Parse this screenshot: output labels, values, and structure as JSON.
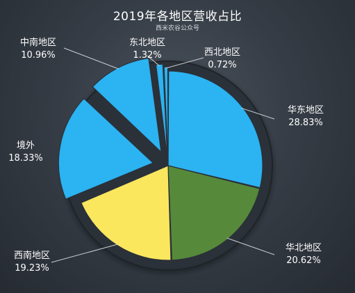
{
  "chart_data": {
    "type": "pie",
    "title": "2019年各地区营收占比",
    "subtitle": "西米农谷公众号",
    "unit": "%",
    "slices": [
      {
        "name": "华东地区",
        "value": 28.83,
        "percent_label": "28.83%",
        "color": "#2bb3f2"
      },
      {
        "name": "华北地区",
        "value": 20.62,
        "percent_label": "20.62%",
        "color": "#568a3a"
      },
      {
        "name": "西南地区",
        "value": 19.23,
        "percent_label": "19.23%",
        "color": "#fbe75d"
      },
      {
        "name": "境外",
        "value": 18.33,
        "percent_label": "18.33%",
        "color": "#2bb3f2"
      },
      {
        "name": "中南地区",
        "value": 10.96,
        "percent_label": "10.96%",
        "color": "#2bb3f2"
      },
      {
        "name": "东北地区",
        "value": 1.32,
        "percent_label": "1.32%",
        "color": "#2bb3f2"
      },
      {
        "name": "西北地区",
        "value": 0.72,
        "percent_label": "0.72%",
        "color": "#2bb3f2"
      }
    ]
  }
}
